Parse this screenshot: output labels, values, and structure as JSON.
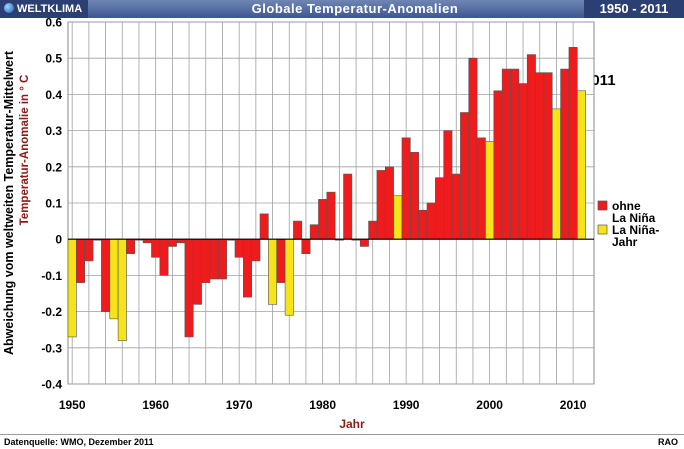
{
  "header": {
    "brand": "WELTKLIMA",
    "title": "Globale Temperatur-Anomalien",
    "range": "1950 - 2011"
  },
  "footer": {
    "source": "Datenquelle: WMO,  Dezember 2011",
    "credit": "RAO"
  },
  "colors": {
    "normal": "#ee1c1c",
    "la_nina": "#f6e31a",
    "outline": "#555555",
    "grid": "#a0a0a0"
  },
  "chart_data": {
    "type": "bar",
    "title": "Globale Temperatur-Anomalien",
    "xlabel": "Jahr",
    "ylabel_outer": "Abweichung vom weltweiten Temperatur-Mittelwert",
    "ylabel_inner": "Temperatur-Anomalie in ° C",
    "ylim": [
      -0.4,
      0.6
    ],
    "yticks": [
      -0.4,
      -0.3,
      -0.2,
      -0.1,
      0,
      0.1,
      0.2,
      0.3,
      0.4,
      0.5,
      0.6
    ],
    "xticks": [
      1950,
      1960,
      1970,
      1980,
      1990,
      2000,
      2010
    ],
    "grid": true,
    "legend_position": "right",
    "legend": [
      {
        "label_lines": [
          "ohne",
          "La Niña"
        ],
        "color": "#ee1c1c"
      },
      {
        "label_lines": [
          "La Niña-",
          "Jahr"
        ],
        "color": "#f6e31a"
      }
    ],
    "annotation": "2011",
    "x": [
      1950,
      1951,
      1952,
      1953,
      1954,
      1955,
      1956,
      1957,
      1958,
      1959,
      1960,
      1961,
      1962,
      1963,
      1964,
      1965,
      1966,
      1967,
      1968,
      1969,
      1970,
      1971,
      1972,
      1973,
      1974,
      1975,
      1976,
      1977,
      1978,
      1979,
      1980,
      1981,
      1982,
      1983,
      1984,
      1985,
      1986,
      1987,
      1988,
      1989,
      1990,
      1991,
      1992,
      1993,
      1994,
      1995,
      1996,
      1997,
      1998,
      1999,
      2000,
      2001,
      2002,
      2003,
      2004,
      2005,
      2006,
      2007,
      2008,
      2009,
      2010,
      2011
    ],
    "values": [
      -0.27,
      -0.12,
      -0.06,
      0.0,
      -0.2,
      -0.22,
      -0.28,
      -0.04,
      0.0,
      -0.01,
      -0.05,
      -0.1,
      -0.02,
      -0.01,
      -0.27,
      -0.18,
      -0.12,
      -0.11,
      -0.11,
      0.0,
      -0.05,
      -0.16,
      -0.06,
      0.07,
      -0.18,
      -0.12,
      -0.21,
      0.05,
      -0.04,
      0.04,
      0.11,
      0.13,
      0.0,
      0.18,
      0.0,
      -0.02,
      0.05,
      0.19,
      0.2,
      0.12,
      0.28,
      0.24,
      0.08,
      0.1,
      0.17,
      0.3,
      0.18,
      0.35,
      0.5,
      0.28,
      0.27,
      0.41,
      0.47,
      0.47,
      0.43,
      0.51,
      0.46,
      0.46,
      0.36,
      0.47,
      0.53,
      0.41
    ],
    "la_nina": [
      1950,
      1955,
      1956,
      1974,
      1976,
      1989,
      2000,
      2008,
      2011
    ]
  }
}
